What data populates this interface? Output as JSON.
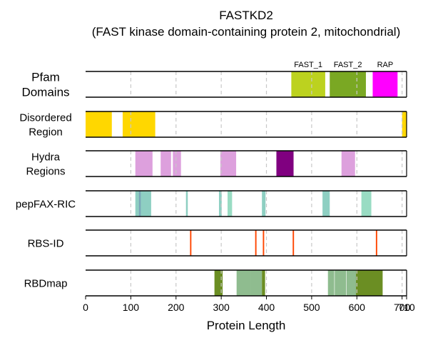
{
  "chart_data": {
    "type": "feature-track",
    "title": "FASTKD2",
    "subtitle": "(FAST kinase domain-containing protein 2, mitochondrial)",
    "xlabel": "Protein Length",
    "xlim": [
      0,
      710
    ],
    "protein_length": 710,
    "xticks": [
      0,
      100,
      200,
      300,
      400,
      500,
      600,
      700,
      710
    ],
    "grid_x": [
      100,
      200,
      300,
      400,
      500,
      600,
      700
    ],
    "tracks": [
      {
        "name": "Pfam\nDomains",
        "features": [
          {
            "start": 455,
            "end": 530,
            "color": "#bcd21f",
            "label": "FAST_1"
          },
          {
            "start": 540,
            "end": 620,
            "color": "#7aa823",
            "label": "FAST_2"
          },
          {
            "start": 635,
            "end": 690,
            "color": "#ff00ff",
            "label": "RAP"
          }
        ]
      },
      {
        "name": "Disordered\nRegion",
        "features": [
          {
            "start": 0,
            "end": 58,
            "color": "#ffd700"
          },
          {
            "start": 82,
            "end": 154,
            "color": "#ffd700"
          },
          {
            "start": 700,
            "end": 710,
            "color": "#ffd700"
          }
        ]
      },
      {
        "name": "Hydra\nRegions",
        "features": [
          {
            "start": 110,
            "end": 148,
            "color": "#dda0dd"
          },
          {
            "start": 166,
            "end": 189,
            "color": "#dda0dd"
          },
          {
            "start": 193,
            "end": 211,
            "color": "#dda0dd"
          },
          {
            "start": 298,
            "end": 333,
            "color": "#dda0dd"
          },
          {
            "start": 422,
            "end": 460,
            "color": "#800080"
          },
          {
            "start": 566,
            "end": 596,
            "color": "#dda0dd"
          }
        ]
      },
      {
        "name": "pepFAX-RIC",
        "features": [
          {
            "start": 110,
            "end": 145,
            "color": "#8ecfc2"
          },
          {
            "start": 118,
            "end": 122,
            "color": "#7aa6b8"
          },
          {
            "start": 222,
            "end": 226,
            "color": "#8ecfc2"
          },
          {
            "start": 295,
            "end": 301,
            "color": "#8ecfc2"
          },
          {
            "start": 314,
            "end": 324,
            "color": "#99dcc3"
          },
          {
            "start": 390,
            "end": 398,
            "color": "#8ecfc2"
          },
          {
            "start": 524,
            "end": 540,
            "color": "#8ecfc2"
          },
          {
            "start": 610,
            "end": 632,
            "color": "#99dcc3"
          }
        ]
      },
      {
        "name": "RBS-ID",
        "features": [
          {
            "start": 231,
            "end": 234,
            "color": "#ff4500"
          },
          {
            "start": 375,
            "end": 378,
            "color": "#ff4500"
          },
          {
            "start": 392,
            "end": 395,
            "color": "#ff4500"
          },
          {
            "start": 458,
            "end": 461,
            "color": "#ff4500"
          },
          {
            "start": 642,
            "end": 645,
            "color": "#ff4500"
          }
        ]
      },
      {
        "name": "RBDmap",
        "features": [
          {
            "start": 285,
            "end": 303,
            "color": "#6b8e23"
          },
          {
            "start": 334,
            "end": 366,
            "color": "#8fbc8f"
          },
          {
            "start": 366,
            "end": 390,
            "color": "#8fbc8f"
          },
          {
            "start": 390,
            "end": 397,
            "color": "#6b8e23"
          },
          {
            "start": 536,
            "end": 550,
            "color": "#8fbc8f"
          },
          {
            "start": 551,
            "end": 576,
            "color": "#8fbc8f"
          },
          {
            "start": 577,
            "end": 598,
            "color": "#8fbc8f"
          },
          {
            "start": 598,
            "end": 657,
            "color": "#6b8e23"
          }
        ]
      }
    ]
  }
}
